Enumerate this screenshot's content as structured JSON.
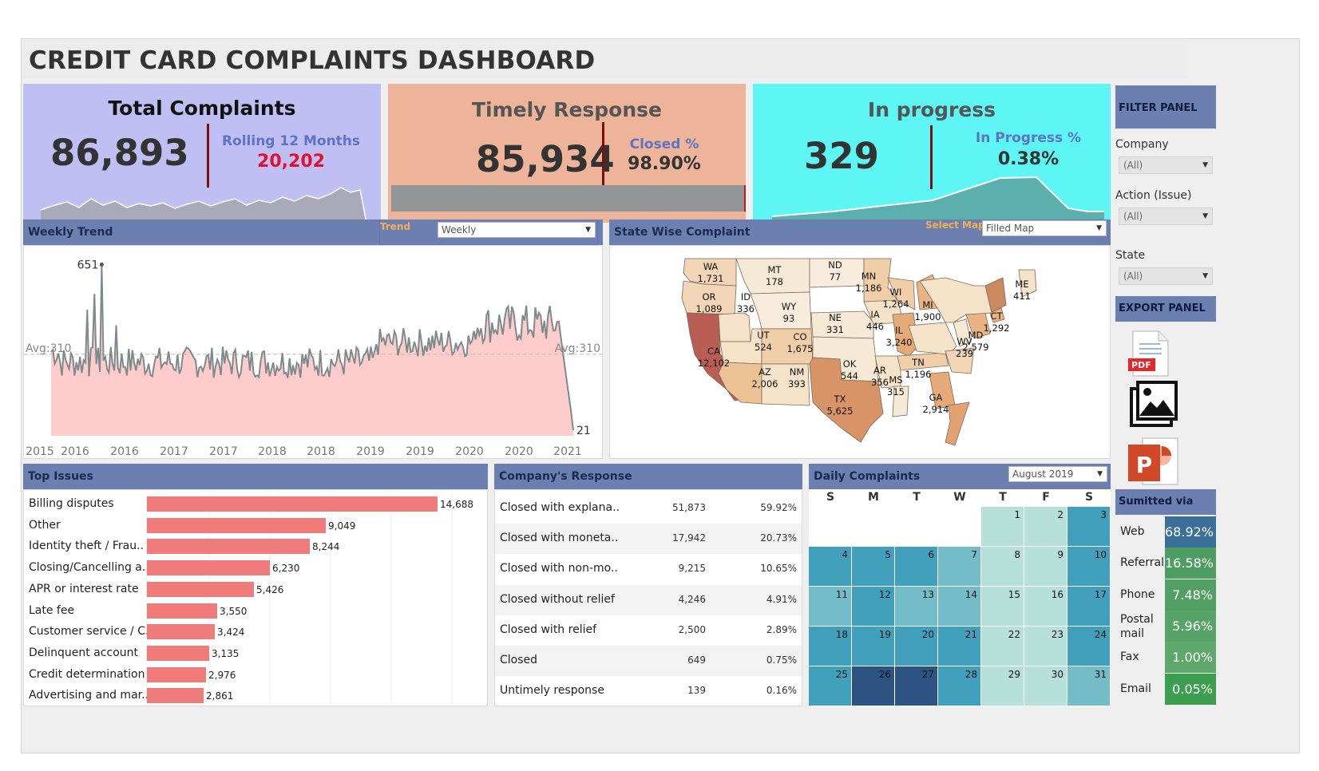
{
  "title": "CREDIT CARD COMPLAINTS DASHBOARD",
  "kpis": {
    "total": {
      "title": "Total Complaints",
      "value": "86,893",
      "sub_label": "Rolling 12 Months",
      "sub_value": "20,202"
    },
    "timely": {
      "title": "Timely Response",
      "value": "85,934",
      "sub_label": "Closed %",
      "sub_value": "98.90%"
    },
    "progress": {
      "title": "In progress",
      "value": "329",
      "sub_label": "In Progress %",
      "sub_value": "0.38%"
    }
  },
  "weekly": {
    "header": "Weekly Trend",
    "trend_label": "Trend",
    "trend_value": "Weekly",
    "max_label": "651",
    "min_label": "21",
    "avg_left": "Avg:310",
    "avg_right": "Avg:310",
    "x_ticks": [
      "2015",
      "2016",
      "2016",
      "2017",
      "2017",
      "2018",
      "2018",
      "2019",
      "2019",
      "2020",
      "2020",
      "2021"
    ]
  },
  "state": {
    "header": "State Wise Complaint",
    "select_label": "Select Map",
    "select_value": "Filled Map",
    "states": [
      {
        "code": "WA",
        "value": "1,731"
      },
      {
        "code": "OR",
        "value": "1,089"
      },
      {
        "code": "CA",
        "value": "12,102"
      },
      {
        "code": "ID",
        "value": "336"
      },
      {
        "code": "MT",
        "value": "178"
      },
      {
        "code": "WY",
        "value": "93"
      },
      {
        "code": "UT",
        "value": "524"
      },
      {
        "code": "CO",
        "value": "1,675"
      },
      {
        "code": "AZ",
        "value": "2,006"
      },
      {
        "code": "NM",
        "value": "393"
      },
      {
        "code": "ND",
        "value": "77"
      },
      {
        "code": "NE",
        "value": "331"
      },
      {
        "code": "OK",
        "value": "544"
      },
      {
        "code": "TX",
        "value": "5,625"
      },
      {
        "code": "MN",
        "value": "1,186"
      },
      {
        "code": "IA",
        "value": "446"
      },
      {
        "code": "AR",
        "value": "356"
      },
      {
        "code": "MS",
        "value": "315"
      },
      {
        "code": "WI",
        "value": "1,264"
      },
      {
        "code": "IL",
        "value": "3,240"
      },
      {
        "code": "TN",
        "value": "1,196"
      },
      {
        "code": "MI",
        "value": "1,900"
      },
      {
        "code": "GA",
        "value": "2,914"
      },
      {
        "code": "WV",
        "value": "239"
      },
      {
        "code": "MD",
        "value": "2,579"
      },
      {
        "code": "CT",
        "value": "1,292"
      },
      {
        "code": "ME",
        "value": "411"
      }
    ]
  },
  "issues": {
    "header": "Top Issues",
    "items": [
      {
        "label": "Billing disputes",
        "value": "14,688",
        "n": 14688
      },
      {
        "label": "Other",
        "value": "9,049",
        "n": 9049
      },
      {
        "label": "Identity theft / Frau..",
        "value": "8,244",
        "n": 8244
      },
      {
        "label": "Closing/Cancelling a..",
        "value": "6,230",
        "n": 6230
      },
      {
        "label": "APR or interest rate",
        "value": "5,426",
        "n": 5426
      },
      {
        "label": "Late fee",
        "value": "3,550",
        "n": 3550
      },
      {
        "label": "Customer service / C..",
        "value": "3,424",
        "n": 3424
      },
      {
        "label": "Delinquent account",
        "value": "3,135",
        "n": 3135
      },
      {
        "label": "Credit determination",
        "value": "2,976",
        "n": 2976
      },
      {
        "label": "Advertising and mar..",
        "value": "2,861",
        "n": 2861
      }
    ]
  },
  "response": {
    "header": "Company's Response",
    "rows": [
      {
        "label": "Closed with explana..",
        "count": "51,873",
        "pct": "59.92%"
      },
      {
        "label": "Closed with moneta..",
        "count": "17,942",
        "pct": "20.73%"
      },
      {
        "label": "Closed with non-mo..",
        "count": "9,215",
        "pct": "10.65%"
      },
      {
        "label": "Closed without relief",
        "count": "4,246",
        "pct": "4.91%"
      },
      {
        "label": "Closed with relief",
        "count": "2,500",
        "pct": "2.89%"
      },
      {
        "label": "Closed",
        "count": "649",
        "pct": "0.75%"
      },
      {
        "label": "Untimely response",
        "count": "139",
        "pct": "0.16%"
      }
    ]
  },
  "daily": {
    "header": "Daily Complaints",
    "month": "August 2019",
    "weekdays": [
      "S",
      "M",
      "T",
      "W",
      "T",
      "F",
      "S"
    ],
    "start_weekday": 4,
    "days": 31,
    "levels": [
      1,
      1,
      3,
      3,
      3,
      3,
      2,
      1,
      1,
      3,
      2,
      3,
      2,
      2,
      1,
      1,
      3,
      3,
      3,
      3,
      3,
      1,
      1,
      3,
      3,
      5,
      5,
      3,
      1,
      1,
      2
    ]
  },
  "filter": {
    "header": "FILTER PANEL",
    "fields": [
      {
        "label": "Company",
        "value": "(All)"
      },
      {
        "label": "Action (Issue)",
        "value": "(All)"
      },
      {
        "label": "State",
        "value": "(All)"
      }
    ]
  },
  "export": {
    "header": "EXPORT PANEL",
    "pdf_label": "PDF"
  },
  "via": {
    "header": "Sumitted via",
    "rows": [
      {
        "label": "Web",
        "value": "68.92%"
      },
      {
        "label": "Referral",
        "value": "16.58%"
      },
      {
        "label": "Phone",
        "value": "7.48%"
      },
      {
        "label": "Postal mail",
        "value": "5.96%"
      },
      {
        "label": "Fax",
        "value": "1.00%"
      },
      {
        "label": "Email",
        "value": "0.05%"
      }
    ]
  },
  "colors": {
    "header_blue": "#6c7fb1",
    "kpi_total_bg": "#bfbff4",
    "kpi_timely_bg": "#eeb49a",
    "kpi_progress_bg": "#5ef5f5",
    "rolling_red": "#e2102e",
    "issue_bar": "#f07b7b",
    "trend_fill": "#ffcccc",
    "trend_line": "#7f8a8c",
    "cal_levels": [
      "#ffffff",
      "#b7e0d8",
      "#73bcc8",
      "#41a0bb",
      "#2e7aa8",
      "#2d5383"
    ],
    "via_greens": [
      "#3a6f9a",
      "#4e9e62",
      "#519f63",
      "#58a367",
      "#5fa86b",
      "#3c9e4f"
    ]
  }
}
